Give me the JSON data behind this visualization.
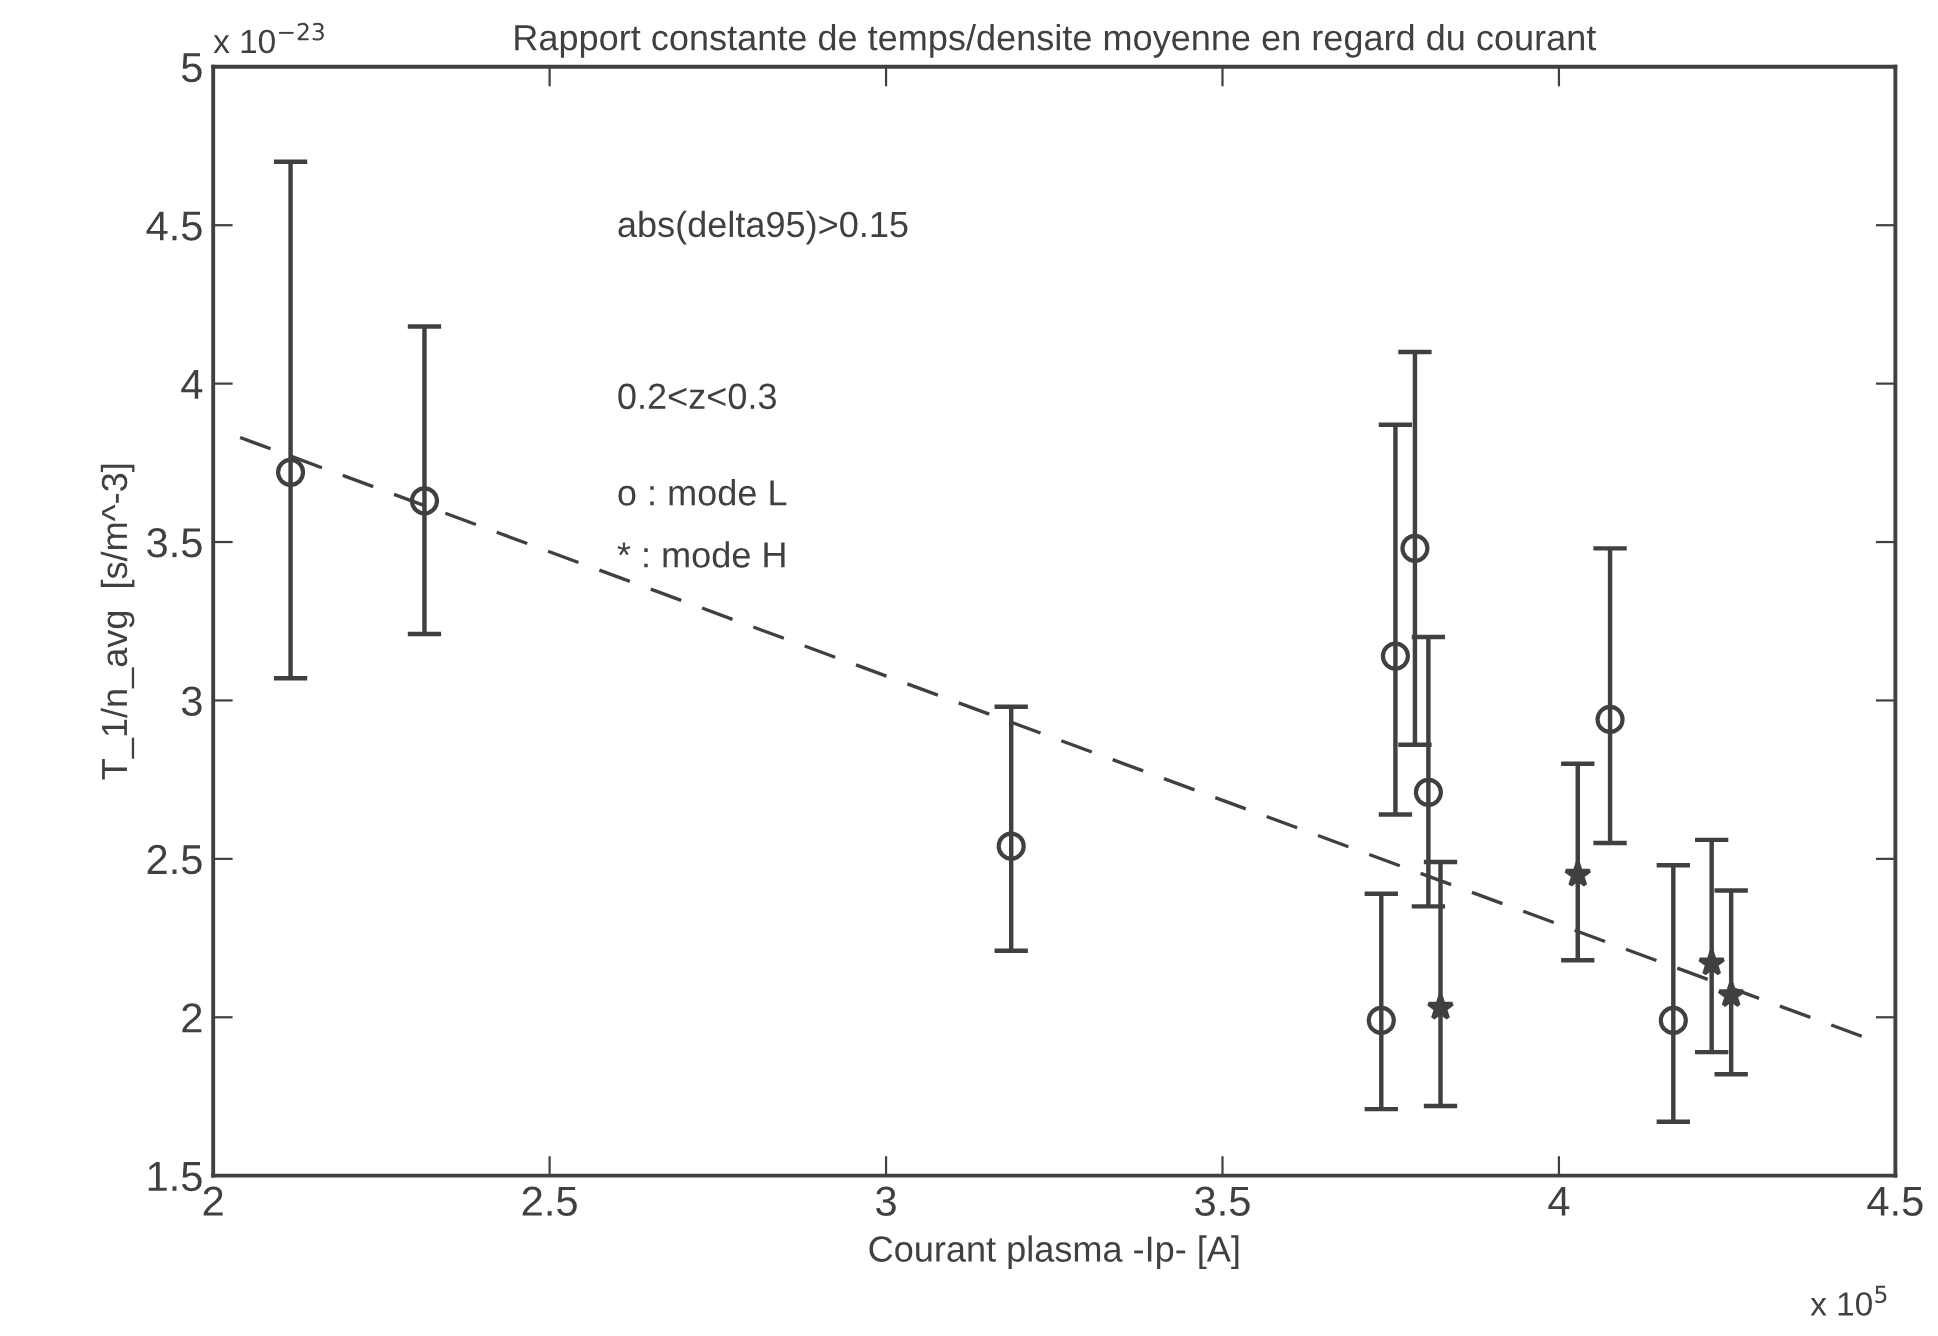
{
  "chart_data": {
    "type": "scatter",
    "title": "Rapport constante de temps/densite moyenne en regard du courant",
    "xlabel": "Courant plasma -Ip- [A]",
    "ylabel": "T_1/n_avg  [s/m^-3]",
    "xlim": [
      2,
      4.5
    ],
    "xticks": [
      2,
      2.5,
      3,
      3.5,
      4,
      4.5
    ],
    "ylim": [
      1.5,
      5
    ],
    "yticks": [
      1.5,
      2,
      2.5,
      3,
      3.5,
      4,
      4.5,
      5
    ],
    "grid": false,
    "series": [
      {
        "color": "#404040",
        "marker": "circle",
        "x": [
          2.115,
          2.314,
          3.186,
          3.736,
          3.757,
          3.786,
          3.806,
          4.076,
          4.17
        ],
        "values": [
          3.72,
          3.63,
          2.54,
          1.99,
          3.14,
          3.48,
          2.71,
          2.94,
          1.99
        ],
        "errors": [
          [
            3.07,
            4.7
          ],
          [
            3.21,
            4.18
          ],
          [
            2.21,
            2.98
          ],
          [
            1.71,
            2.39
          ],
          [
            2.64,
            3.87
          ],
          [
            2.86,
            4.1
          ],
          [
            2.35,
            3.2
          ],
          [
            2.55,
            3.48
          ],
          [
            1.67,
            2.48
          ]
        ]
      },
      {
        "color": "#404040",
        "marker": "star",
        "x": [
          3.824,
          4.028,
          4.227,
          4.256
        ],
        "values": [
          2.03,
          2.45,
          2.17,
          2.07
        ],
        "errors": [
          [
            1.72,
            2.49
          ],
          [
            2.18,
            2.8
          ],
          [
            1.89,
            2.56
          ],
          [
            1.82,
            2.4
          ]
        ]
      },
      {
        "type": "line",
        "color": "#404040",
        "line_style": "dashed",
        "marker": "none",
        "x": [
          2.04,
          4.45
        ],
        "values": [
          3.83,
          1.94
        ]
      }
    ],
    "annotations": [
      "abs(delta95)>0.15",
      "0.2<z<0.3",
      "o : mode L",
      "* : mode H",
      "x 10$^{−23}$",
      "x 10$^{5}$"
    ]
  }
}
